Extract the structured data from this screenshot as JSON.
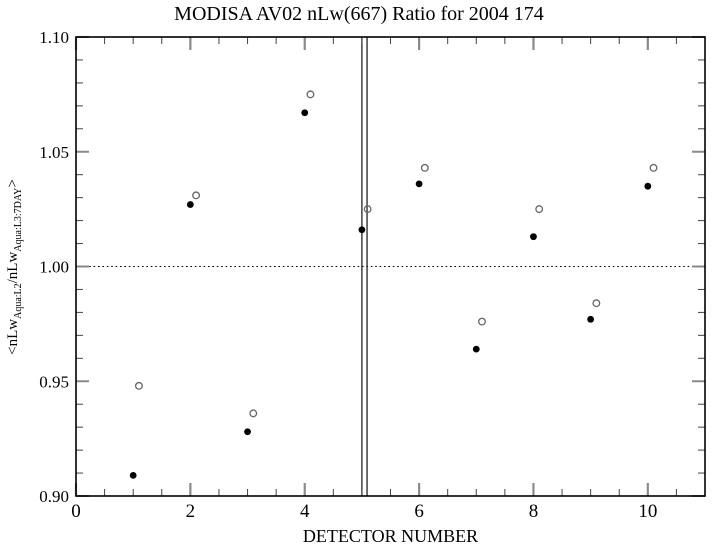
{
  "chart": {
    "title": "MODISA AV02 nLw(667) Ratio for 2004 174",
    "xlabel": "DETECTOR NUMBER",
    "ylabel_plain": "<nLw_Aqua:L2/nLw_Aqua:L3:7DAY>",
    "ylabel_parts": [
      {
        "text": "<nLw"
      },
      {
        "sub": "Aqua:L2"
      },
      {
        "text": "/nLw"
      },
      {
        "sub": "Aqua:L3:7DAY"
      },
      {
        "text": ">"
      }
    ]
  },
  "chart_data": {
    "type": "scatter",
    "title": "MODISA AV02 nLw(667) Ratio for 2004 174",
    "xlabel": "DETECTOR NUMBER",
    "ylabel": "<nLw_Aqua:L2/nLw_Aqua:L3:7DAY>",
    "xlim": [
      0,
      11
    ],
    "ylim": [
      0.9,
      1.1
    ],
    "grid": false,
    "legend": "none",
    "x_major_ticks": [
      0,
      2,
      4,
      6,
      8,
      10
    ],
    "x_tick_labels": [
      "0",
      "2",
      "4",
      "6",
      "8",
      "10"
    ],
    "x_minor_interval": 0.5,
    "y_major_ticks": [
      0.9,
      0.95,
      1.0,
      1.05,
      1.1
    ],
    "y_tick_labels": [
      "0.90",
      "0.95",
      "1.00",
      "1.05",
      "1.10"
    ],
    "y_minor_interval": 0.01,
    "categories": [
      1,
      2,
      3,
      4,
      5,
      6,
      7,
      8,
      9,
      10
    ],
    "series": [
      {
        "name": "filled-circle-ratio",
        "marker": "filled-circle",
        "color": "#000000",
        "x": [
          1,
          2,
          3,
          4,
          5,
          6,
          7,
          8,
          9,
          10
        ],
        "values": [
          0.909,
          1.027,
          0.928,
          1.067,
          1.016,
          1.036,
          0.964,
          1.013,
          0.977,
          1.035
        ]
      },
      {
        "name": "open-circle-ratio",
        "marker": "open-circle",
        "color": "#666666",
        "x": [
          1.1,
          2.1,
          3.1,
          4.1,
          5.1,
          6.1,
          7.1,
          8.1,
          9.1,
          10.1
        ],
        "values": [
          0.948,
          1.031,
          0.936,
          1.075,
          1.025,
          1.043,
          0.976,
          1.025,
          0.984,
          1.043
        ]
      }
    ],
    "reference_lines": {
      "horizontal_dotted": [
        1.0
      ],
      "vertical_solid": [
        5.0,
        5.09
      ]
    }
  },
  "colors": {
    "background": "#ffffff",
    "axis": "#000000",
    "major_tick": "#8a8a8a",
    "minor_tick": "#444444",
    "filled_marker": "#000000",
    "open_marker_stroke": "#666666",
    "reference_line": "#000000",
    "vertical_line": "#222222"
  }
}
